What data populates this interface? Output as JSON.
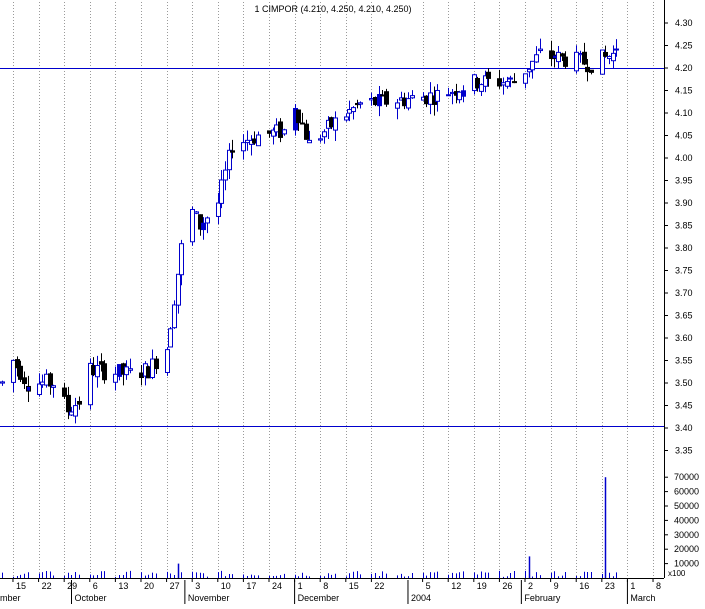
{
  "chart_data": {
    "type": "candlestick",
    "title": "1 CIMPOR (4.210, 4.250, 4.210, 4.250)",
    "grid": true,
    "colors": {
      "up": "#0000cc",
      "down": "#000000",
      "line": "#0000cc",
      "volume": "#0000cc"
    },
    "price_axis": {
      "ylim": [
        3.3,
        4.34
      ],
      "ticks": [
        "4.30",
        "4.25",
        "4.20",
        "4.15",
        "4.10",
        "4.05",
        "4.00",
        "3.95",
        "3.90",
        "3.85",
        "3.80",
        "3.75",
        "3.70",
        "3.65",
        "3.60",
        "3.55",
        "3.50",
        "3.45",
        "3.40",
        "3.35"
      ]
    },
    "volume_axis": {
      "ylim": [
        0,
        75000
      ],
      "ticks": [
        "70000",
        "60000",
        "50000",
        "40000",
        "30000",
        "20000",
        "10000"
      ],
      "multiplier_label": "x100"
    },
    "horizontal_lines": [
      4.2,
      3.405
    ],
    "x_axis": {
      "first_day": "2003-09-12",
      "last_day": "2004-03-11",
      "day_ticks": [
        {
          "d": "2003-09-15",
          "label": "15"
        },
        {
          "d": "2003-09-22",
          "label": "22"
        },
        {
          "d": "2003-09-29",
          "label": "29"
        },
        {
          "d": "2003-10-06",
          "label": "6"
        },
        {
          "d": "2003-10-13",
          "label": "13"
        },
        {
          "d": "2003-10-20",
          "label": "20"
        },
        {
          "d": "2003-10-27",
          "label": "27"
        },
        {
          "d": "2003-11-03",
          "label": "3"
        },
        {
          "d": "2003-11-10",
          "label": "10"
        },
        {
          "d": "2003-11-17",
          "label": "17"
        },
        {
          "d": "2003-11-24",
          "label": "24"
        },
        {
          "d": "2003-12-01",
          "label": "1"
        },
        {
          "d": "2003-12-08",
          "label": "8"
        },
        {
          "d": "2003-12-15",
          "label": "15"
        },
        {
          "d": "2003-12-22",
          "label": "22"
        },
        {
          "d": "2004-01-05",
          "label": "5"
        },
        {
          "d": "2004-01-12",
          "label": "12"
        },
        {
          "d": "2004-01-19",
          "label": "19"
        },
        {
          "d": "2004-01-26",
          "label": "26"
        },
        {
          "d": "2004-02-02",
          "label": "2"
        },
        {
          "d": "2004-02-09",
          "label": "9"
        },
        {
          "d": "2004-02-16",
          "label": "16"
        },
        {
          "d": "2004-02-23",
          "label": "23"
        },
        {
          "d": "2004-03-01",
          "label": "1"
        },
        {
          "d": "2004-03-08",
          "label": "8"
        }
      ],
      "month_labels": [
        {
          "d": "2003-09-12",
          "label": "mber"
        },
        {
          "d": "2003-10-01",
          "label": "October"
        },
        {
          "d": "2003-11-01",
          "label": "November"
        },
        {
          "d": "2003-12-01",
          "label": "December"
        },
        {
          "d": "2004-01-01",
          "label": "2004"
        },
        {
          "d": "2004-02-01",
          "label": "February"
        },
        {
          "d": "2004-03-01",
          "label": "March"
        }
      ]
    },
    "waypoints": [
      {
        "d": "2003-09-12",
        "v": 3.5
      },
      {
        "d": "2003-09-15",
        "v": 3.55
      },
      {
        "d": "2003-09-19",
        "v": 3.5
      },
      {
        "d": "2003-09-26",
        "v": 3.5
      },
      {
        "d": "2003-09-30",
        "v": 3.44
      },
      {
        "d": "2003-10-03",
        "v": 3.46
      },
      {
        "d": "2003-10-06",
        "v": 3.53
      },
      {
        "d": "2003-10-17",
        "v": 3.52
      },
      {
        "d": "2003-10-22",
        "v": 3.53
      },
      {
        "d": "2003-10-27",
        "v": 3.58
      },
      {
        "d": "2003-10-31",
        "v": 3.8
      },
      {
        "d": "2003-11-03",
        "v": 3.88
      },
      {
        "d": "2003-11-05",
        "v": 3.85
      },
      {
        "d": "2003-11-10",
        "v": 3.9
      },
      {
        "d": "2003-11-14",
        "v": 4.03
      },
      {
        "d": "2003-11-21",
        "v": 4.05
      },
      {
        "d": "2003-11-28",
        "v": 4.06
      },
      {
        "d": "2003-12-01",
        "v": 4.12
      },
      {
        "d": "2003-12-05",
        "v": 4.03
      },
      {
        "d": "2003-12-12",
        "v": 4.08
      },
      {
        "d": "2003-12-19",
        "v": 4.12
      },
      {
        "d": "2003-12-31",
        "v": 4.13
      },
      {
        "d": "2004-01-09",
        "v": 4.14
      },
      {
        "d": "2004-01-20",
        "v": 4.17
      },
      {
        "d": "2004-01-30",
        "v": 4.17
      },
      {
        "d": "2004-02-06",
        "v": 4.23
      },
      {
        "d": "2004-02-13",
        "v": 4.22
      },
      {
        "d": "2004-02-20",
        "v": 4.21
      },
      {
        "d": "2004-02-26",
        "v": 4.23
      },
      {
        "d": "2004-02-27",
        "v": 4.25
      }
    ],
    "volume_spikes": [
      {
        "d": "2003-10-30",
        "v": 10000
      },
      {
        "d": "2004-02-03",
        "v": 15000
      },
      {
        "d": "2004-02-24",
        "v": 70000
      }
    ]
  }
}
